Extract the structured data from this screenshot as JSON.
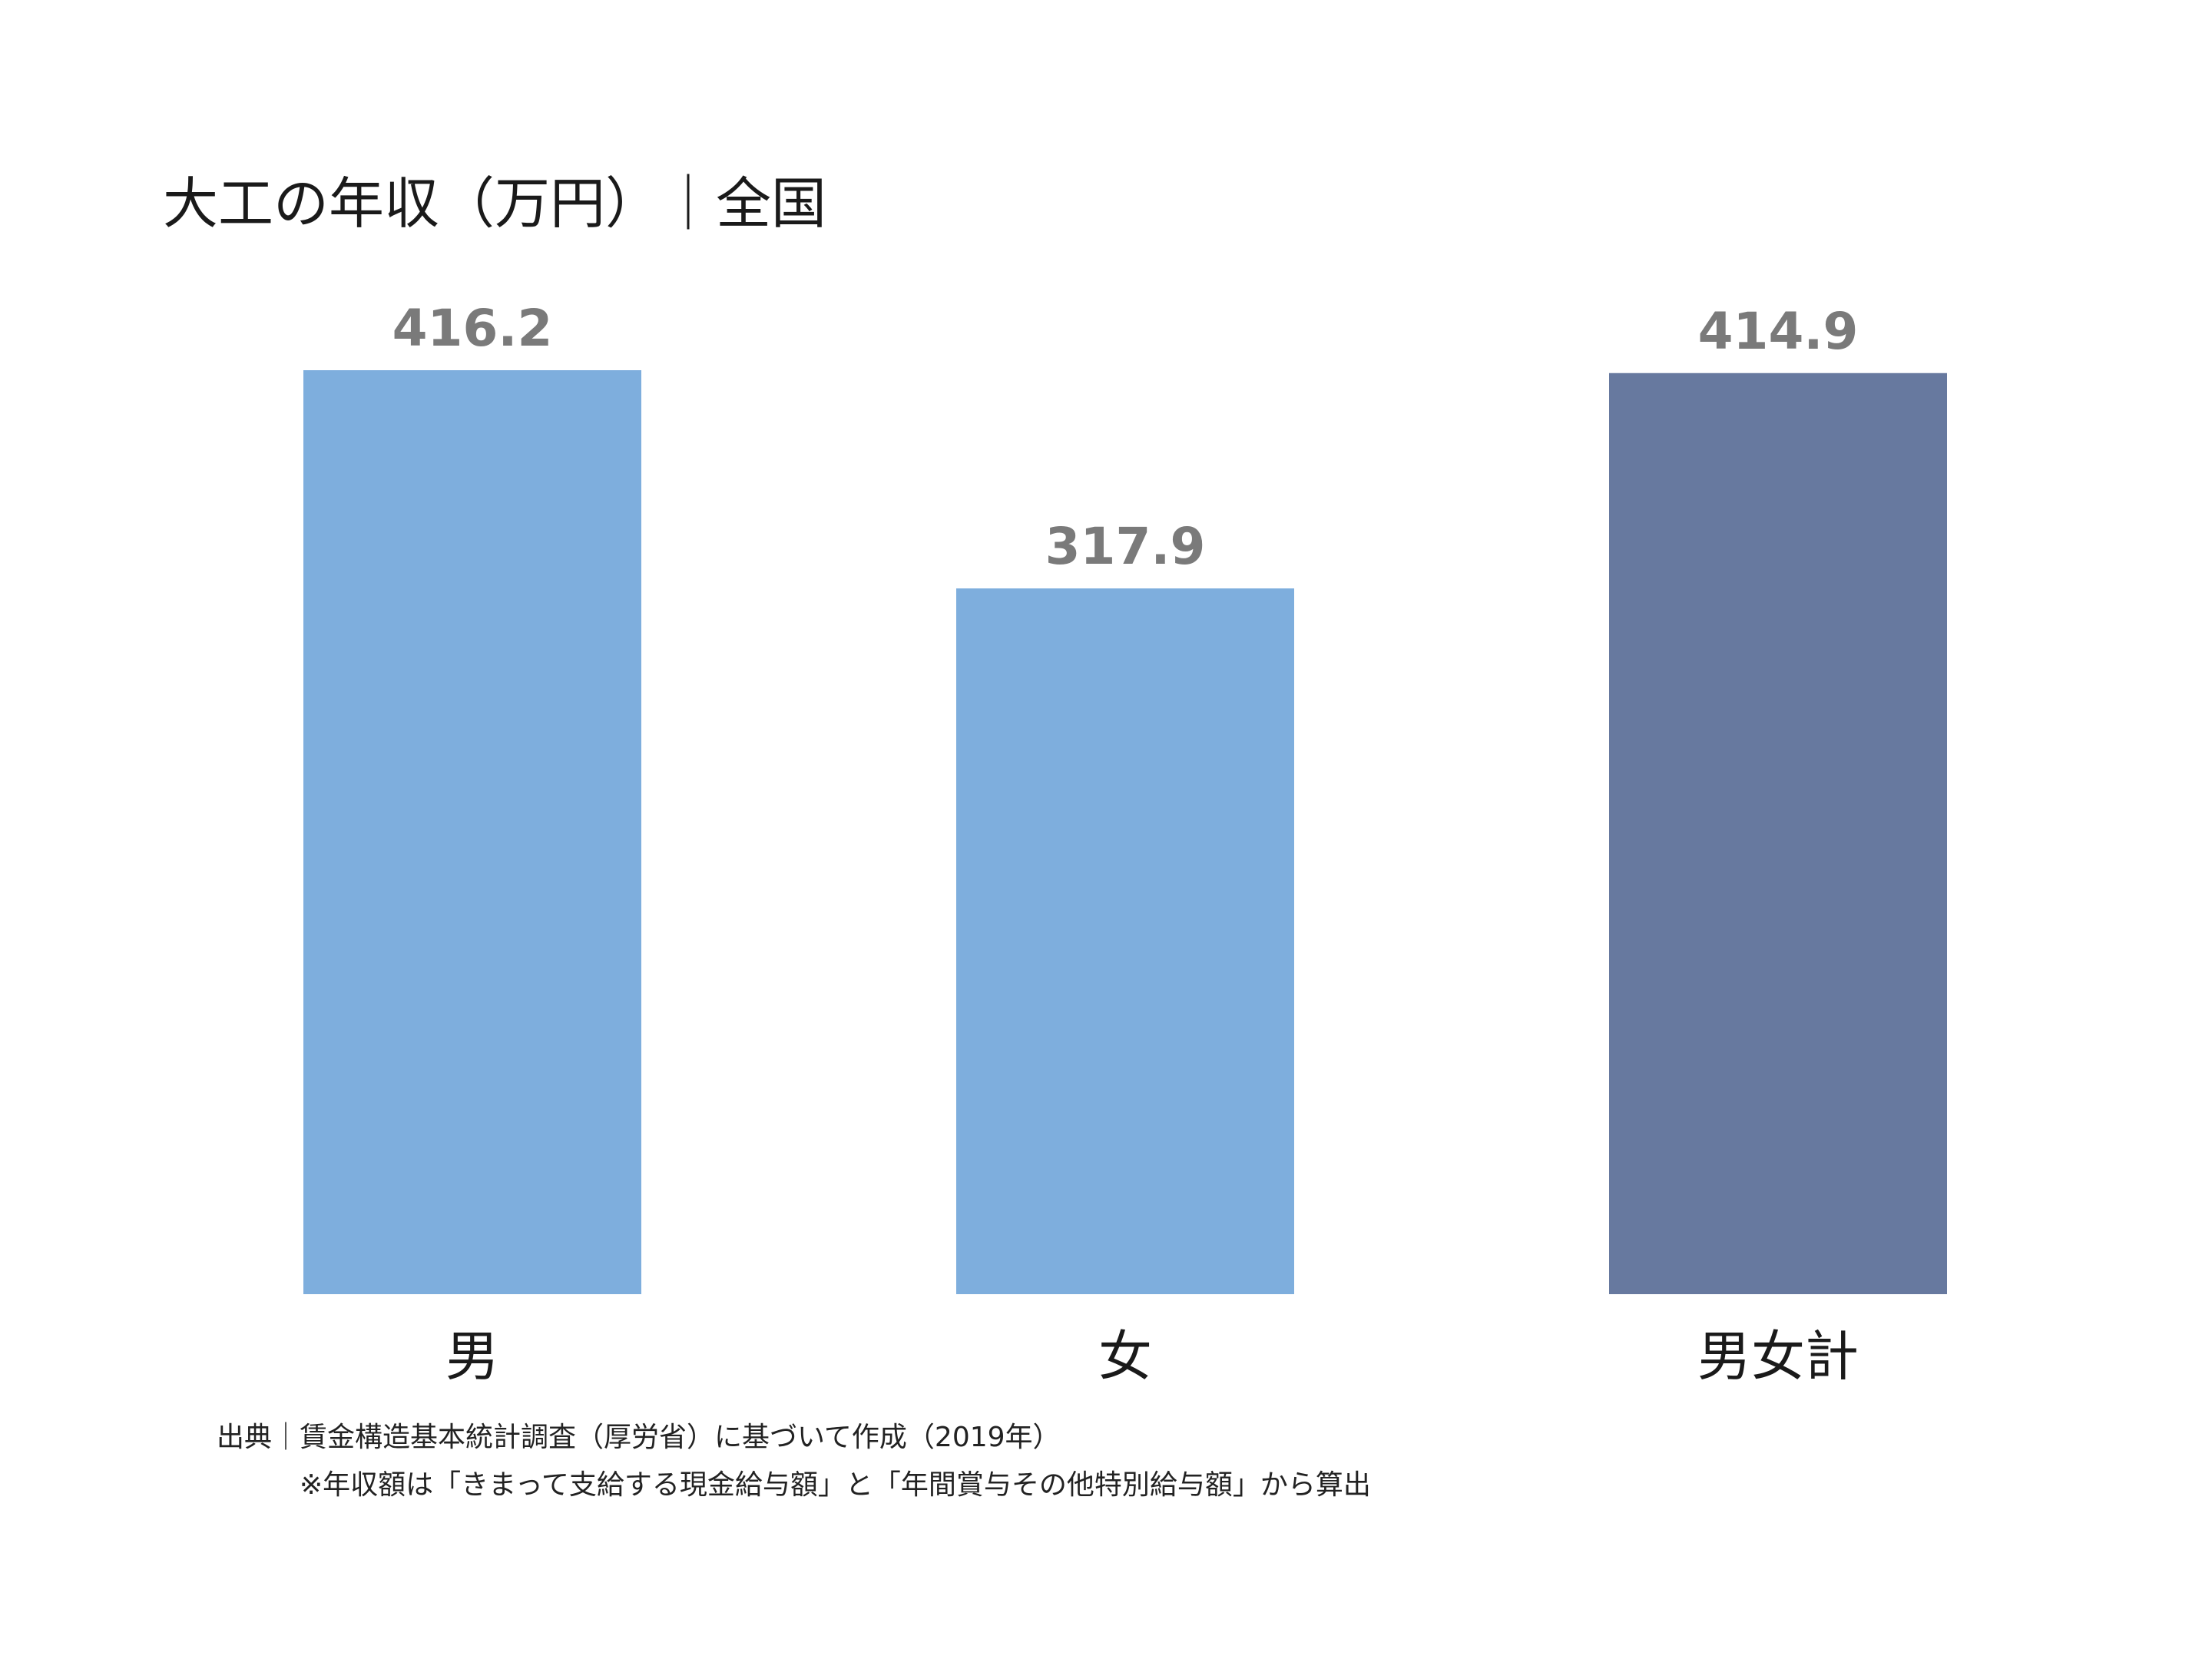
{
  "chart_data": {
    "type": "bar",
    "title": "大工の年収（万円）｜全国",
    "categories": [
      "男",
      "女",
      "男女計"
    ],
    "values": [
      416.2,
      317.9,
      414.9
    ],
    "value_labels": [
      "416.2",
      "317.9",
      "414.9"
    ],
    "colors": [
      "#7eaedd",
      "#7eaedd",
      "#67799f"
    ],
    "ylim": [
      0,
      416.2
    ],
    "grid": false,
    "xlabel": "",
    "ylabel": ""
  },
  "footnotes": {
    "source": "出典｜賃金構造基本統計調査（厚労省）に基づいて作成（2019年）",
    "note": "※年収額は「きまって支給する現金給与額」と「年間賞与その他特別給与額」から算出"
  },
  "colors": {
    "value_label": "#7a7a7a",
    "category_label": "#1a1a1a"
  }
}
